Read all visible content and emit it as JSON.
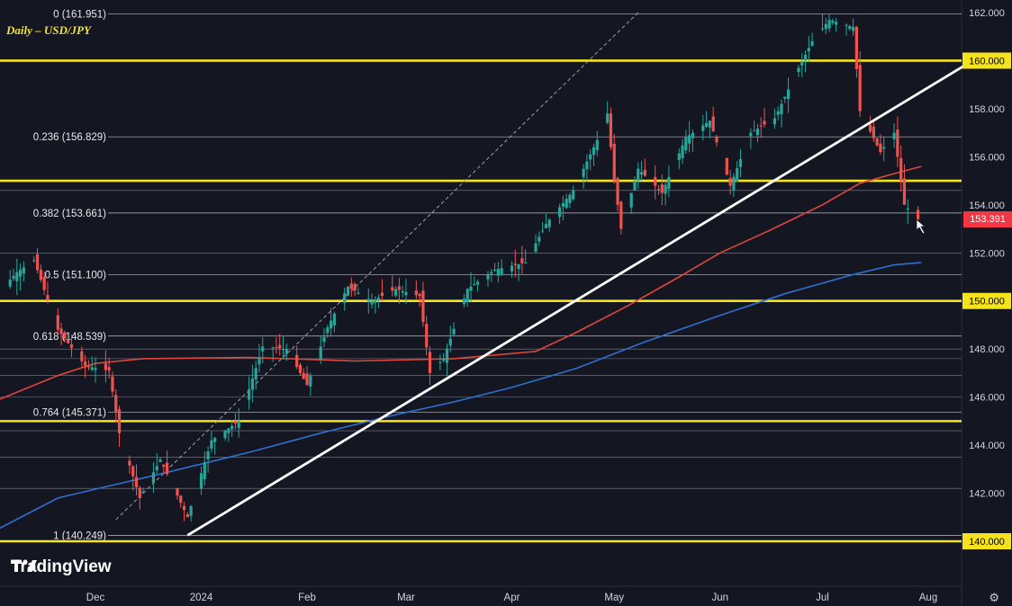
{
  "chart_data": {
    "type": "candlestick",
    "title": "Daily – USD/JPY",
    "watermark": "TradingView",
    "last_price": "153.391",
    "last_price_color": "#f23645",
    "y_axis": {
      "range": [
        139.1,
        162.4
      ],
      "ticks": [
        "162.000",
        "160.000",
        "158.000",
        "156.000",
        "154.000",
        "152.000",
        "150.000",
        "148.000",
        "146.000",
        "144.000",
        "142.000",
        "140.000"
      ]
    },
    "x_axis": {
      "ticks": [
        "Dec",
        "2024",
        "Feb",
        "Mar",
        "Apr",
        "May",
        "Jun",
        "Jul",
        "Aug"
      ]
    },
    "fibonacci": [
      {
        "label": "0 (161.951)",
        "value": 161.951
      },
      {
        "label": "0.236 (156.829)",
        "value": 156.829
      },
      {
        "label": "0.382 (153.661)",
        "value": 153.661
      },
      {
        "label": "0.5 (151.100)",
        "value": 151.1
      },
      {
        "label": "0.618 (148.539)",
        "value": 148.539
      },
      {
        "label": "0.764 (145.371)",
        "value": 145.371
      },
      {
        "label": "1 (140.249)",
        "value": 140.249
      }
    ],
    "horizontal_levels": [
      {
        "label": "160.000",
        "value": 160.0,
        "color": "#f5e31b"
      },
      {
        "label": "155.000",
        "value": 155.0,
        "color": "#f5e31b"
      },
      {
        "label": "150.000",
        "value": 150.0,
        "color": "#f5e31b"
      },
      {
        "label": "145.000",
        "value": 145.0,
        "color": "#f5e31b"
      },
      {
        "label": "140.000",
        "value": 140.0,
        "color": "#f5e31b"
      }
    ],
    "minor_levels": [
      154.6,
      152.0,
      148.0,
      147.6,
      146.9,
      146.0,
      144.6,
      143.5,
      142.2
    ],
    "trendline": {
      "from": [
        "2023-12-28",
        140.25
      ],
      "to": [
        "2024-08-14",
        160.0
      ],
      "color": "#ffffff"
    },
    "dashed_line": {
      "from": [
        "2023-12-07",
        140.9
      ],
      "to": [
        "2024-05-08",
        162.0
      ],
      "color": "#9aa0ad"
    },
    "ma_red": {
      "color": "#e0463c",
      "points": [
        [
          "2023-11-01",
          145.8
        ],
        [
          "2023-11-20",
          146.9
        ],
        [
          "2023-12-01",
          147.4
        ],
        [
          "2023-12-15",
          147.6
        ],
        [
          "2024-01-15",
          147.65
        ],
        [
          "2024-02-15",
          147.5
        ],
        [
          "2024-03-15",
          147.6
        ],
        [
          "2024-04-08",
          147.9
        ],
        [
          "2024-04-20",
          148.7
        ],
        [
          "2024-05-05",
          149.8
        ],
        [
          "2024-05-20",
          151.0
        ],
        [
          "2024-06-01",
          152.0
        ],
        [
          "2024-06-15",
          152.9
        ],
        [
          "2024-07-01",
          154.0
        ],
        [
          "2024-07-12",
          154.9
        ],
        [
          "2024-07-22",
          155.3
        ],
        [
          "2024-07-30",
          155.6
        ]
      ]
    },
    "ma_blue": {
      "color": "#2f6fd1",
      "points": [
        [
          "2023-11-01",
          140.4
        ],
        [
          "2023-11-20",
          141.8
        ],
        [
          "2023-12-05",
          142.3
        ],
        [
          "2023-12-20",
          142.8
        ],
        [
          "2024-01-15",
          143.7
        ],
        [
          "2024-02-05",
          144.5
        ],
        [
          "2024-02-25",
          145.2
        ],
        [
          "2024-03-15",
          145.8
        ],
        [
          "2024-04-01",
          146.4
        ],
        [
          "2024-04-20",
          147.2
        ],
        [
          "2024-05-10",
          148.3
        ],
        [
          "2024-06-01",
          149.4
        ],
        [
          "2024-06-20",
          150.3
        ],
        [
          "2024-07-10",
          151.1
        ],
        [
          "2024-07-22",
          151.5
        ],
        [
          "2024-07-30",
          151.6
        ]
      ]
    },
    "colors": {
      "up": "#26a69a",
      "down": "#ef5350",
      "background": "#141722",
      "grid_line": "#d9dbe1"
    },
    "candles": []
  }
}
